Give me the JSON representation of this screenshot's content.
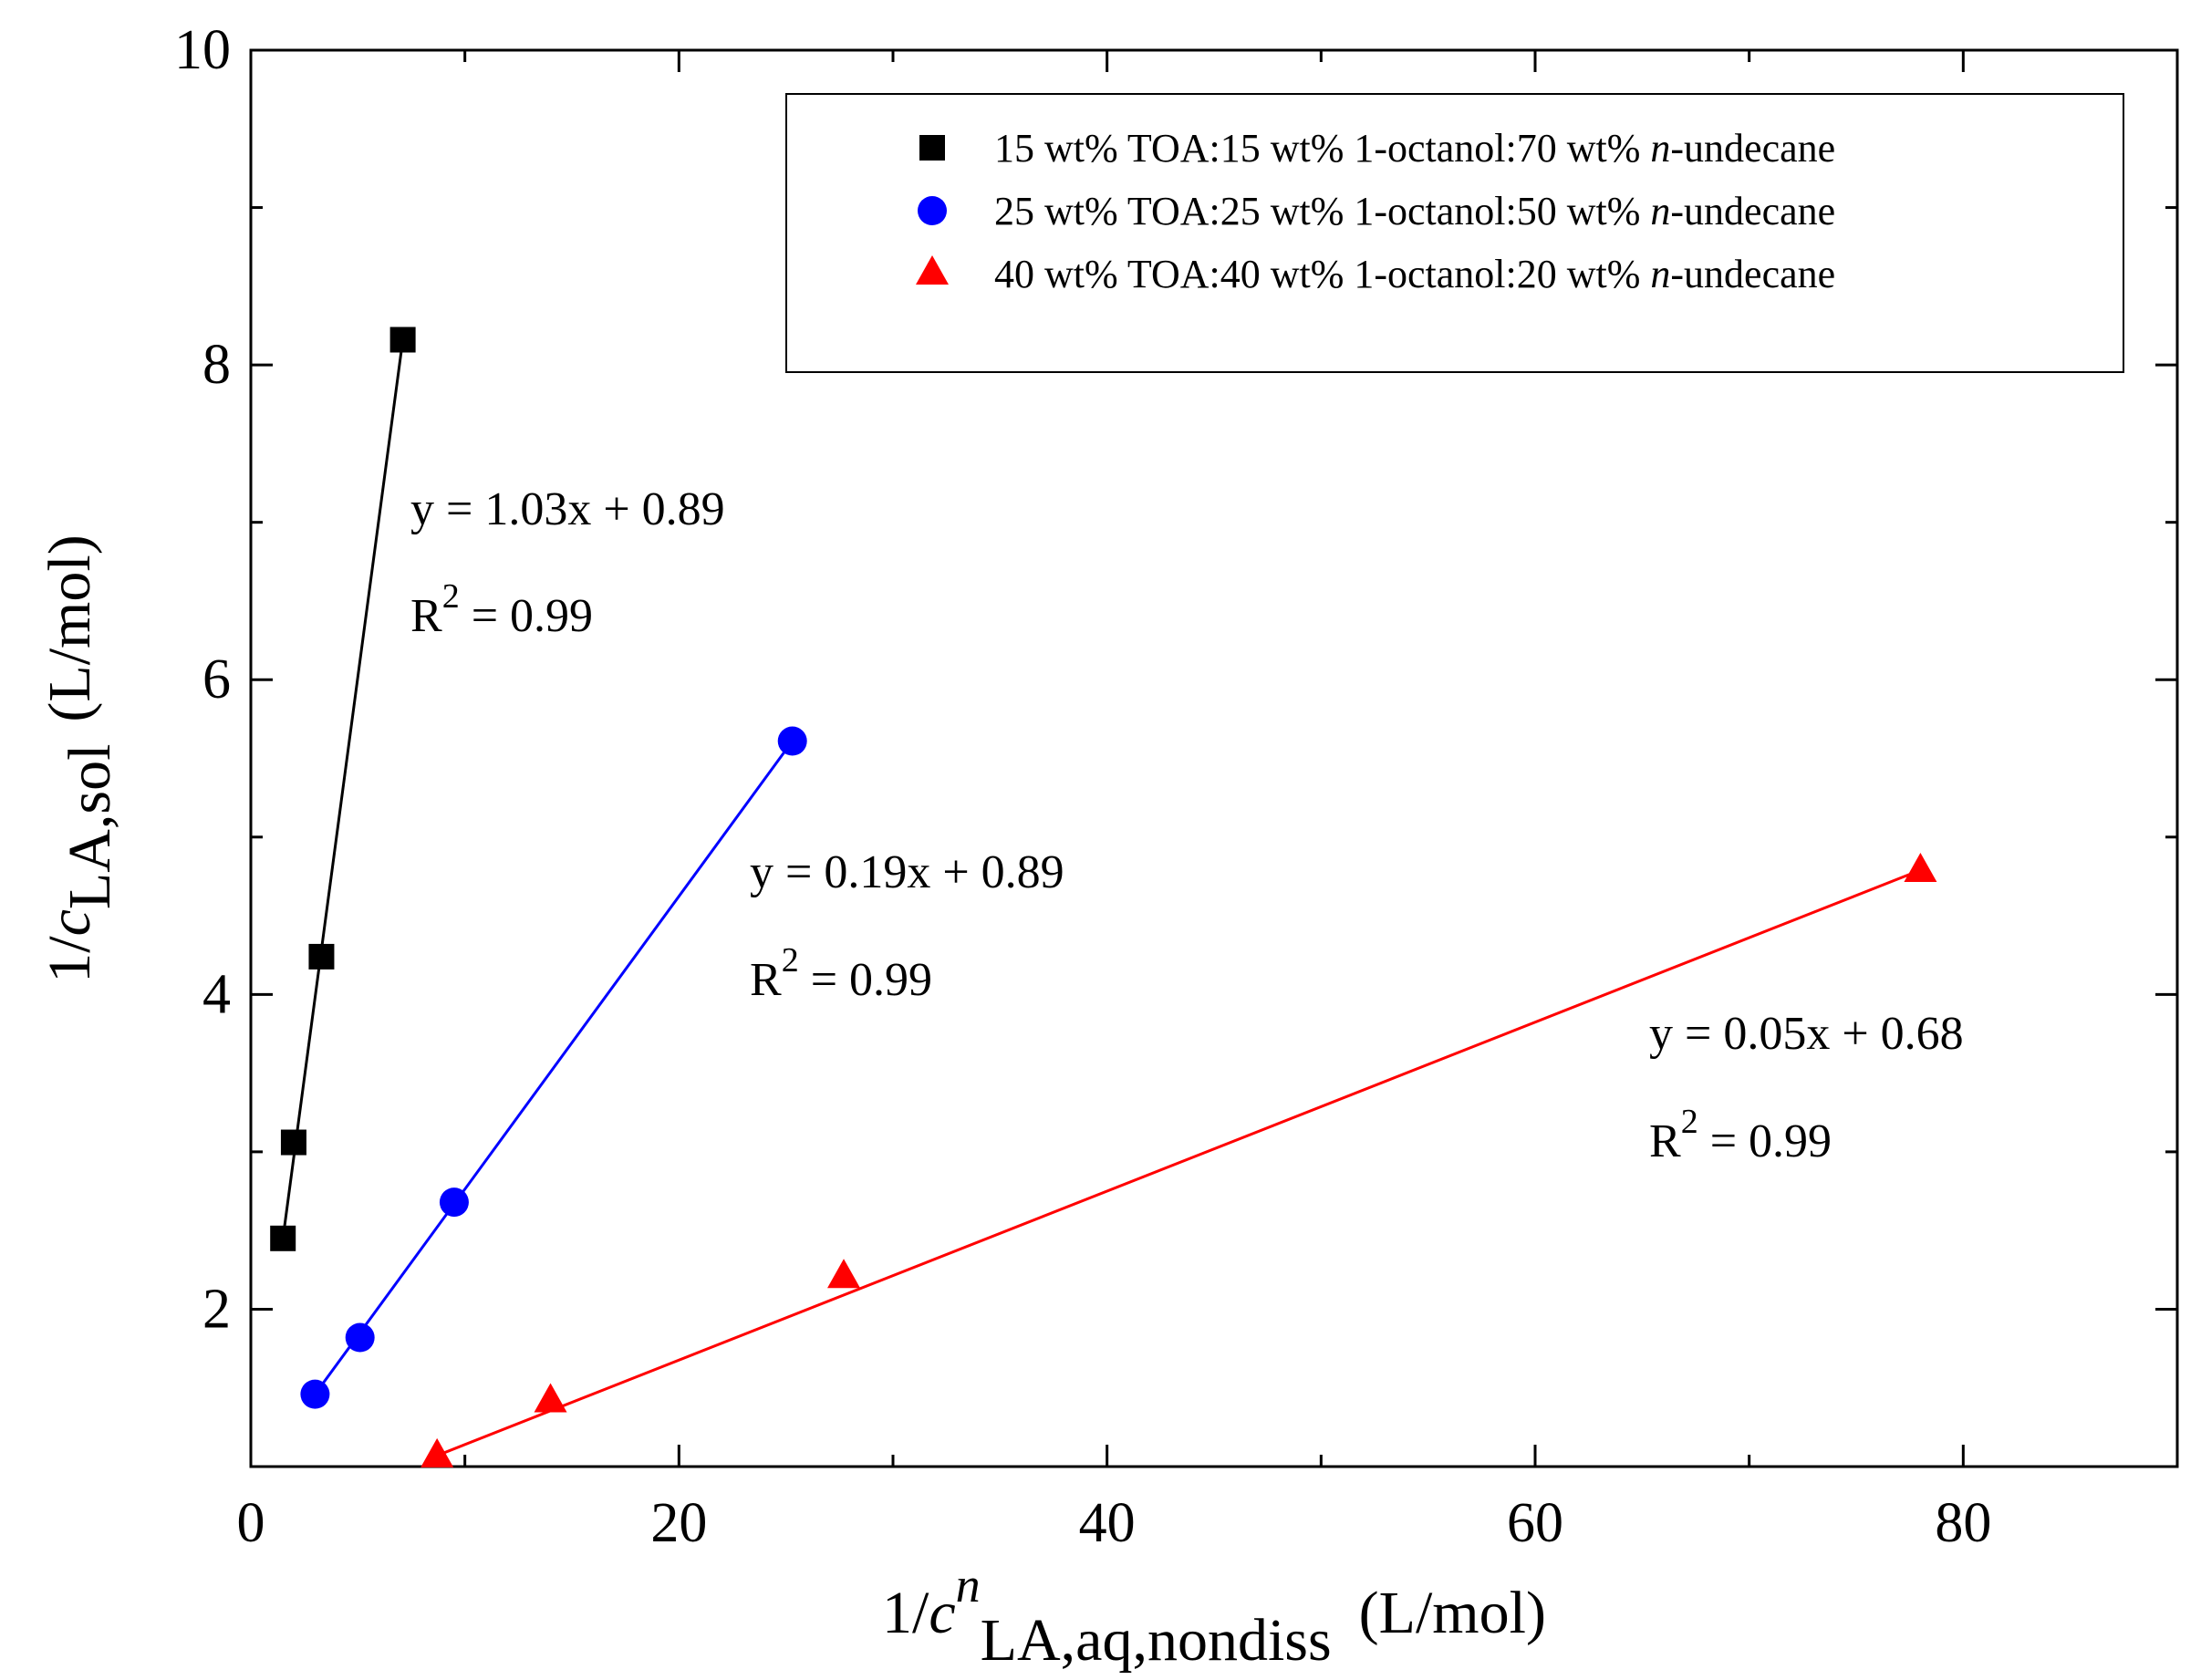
{
  "chart_data": {
    "type": "scatter",
    "xlabel": {
      "prefix": "1/",
      "var": "c",
      "sup": "n",
      "sub": "LA,aq,nondiss",
      "unit": "(L/mol)"
    },
    "ylabel": {
      "prefix": "1/",
      "var": "c",
      "sub": "LA,sol",
      "unit": "(L/mol)"
    },
    "xlim": [
      0,
      90
    ],
    "ylim": [
      1,
      10
    ],
    "x_ticks": [
      0,
      20,
      40,
      60,
      80
    ],
    "y_ticks": [
      2,
      4,
      6,
      8,
      10
    ],
    "x_minor_ticks": [
      10,
      30,
      50,
      70,
      90
    ],
    "y_minor_ticks": [
      3,
      5,
      7,
      9
    ],
    "legend_position": "top-right",
    "series": [
      {
        "name": "15 wt% TOA:15 wt% 1-octanol:70 wt% n-undecane",
        "legend": {
          "pre": "15 wt% TOA:15 wt% 1-octanol:70 wt% ",
          "italic": "n",
          "post": "-undecane"
        },
        "marker": "square",
        "color": "#000000",
        "x": [
          1.5,
          2.0,
          3.3,
          7.1
        ],
        "y": [
          2.45,
          3.06,
          4.24,
          8.16
        ],
        "fit": {
          "slope": 1.03,
          "intercept": 0.89,
          "x_range": [
            1.5,
            7.1
          ],
          "equation": "y = 1.03x + 0.89",
          "r2_prefix": "R",
          "r2_sup": "2",
          "r2_value": " = 0.99"
        }
      },
      {
        "name": "25 wt% TOA:25 wt% 1-octanol:50 wt% n-undecane",
        "legend": {
          "pre": "25 wt% TOA:25 wt% 1-octanol:50 wt% ",
          "italic": "n",
          "post": "-undecane"
        },
        "marker": "circle",
        "color": "#0000ff",
        "x": [
          3.0,
          5.1,
          9.5,
          25.3
        ],
        "y": [
          1.46,
          1.82,
          2.68,
          5.61
        ],
        "fit": {
          "slope": 0.19,
          "intercept": 0.89,
          "x_range": [
            3.0,
            25.3
          ],
          "equation": "y = 0.19x + 0.89",
          "r2_prefix": "R",
          "r2_sup": "2",
          "r2_value": " = 0.99"
        }
      },
      {
        "name": "40 wt% TOA:40 wt% 1-octanol:20 wt% n-undecane",
        "legend": {
          "pre": "40 wt% TOA:40 wt% 1-octanol:20 wt% ",
          "italic": "n",
          "post": "-undecane"
        },
        "marker": "triangle",
        "color": "#ff0000",
        "x": [
          8.7,
          14.0,
          27.7,
          78.0
        ],
        "y": [
          1.07,
          1.42,
          2.21,
          4.79
        ],
        "fit": {
          "slope": 0.05,
          "intercept": 0.68,
          "x_range": [
            8.7,
            78.0
          ],
          "equation": "y = 0.05x + 0.68",
          "r2_prefix": "R",
          "r2_sup": "2",
          "r2_value": " = 0.99"
        }
      }
    ]
  }
}
